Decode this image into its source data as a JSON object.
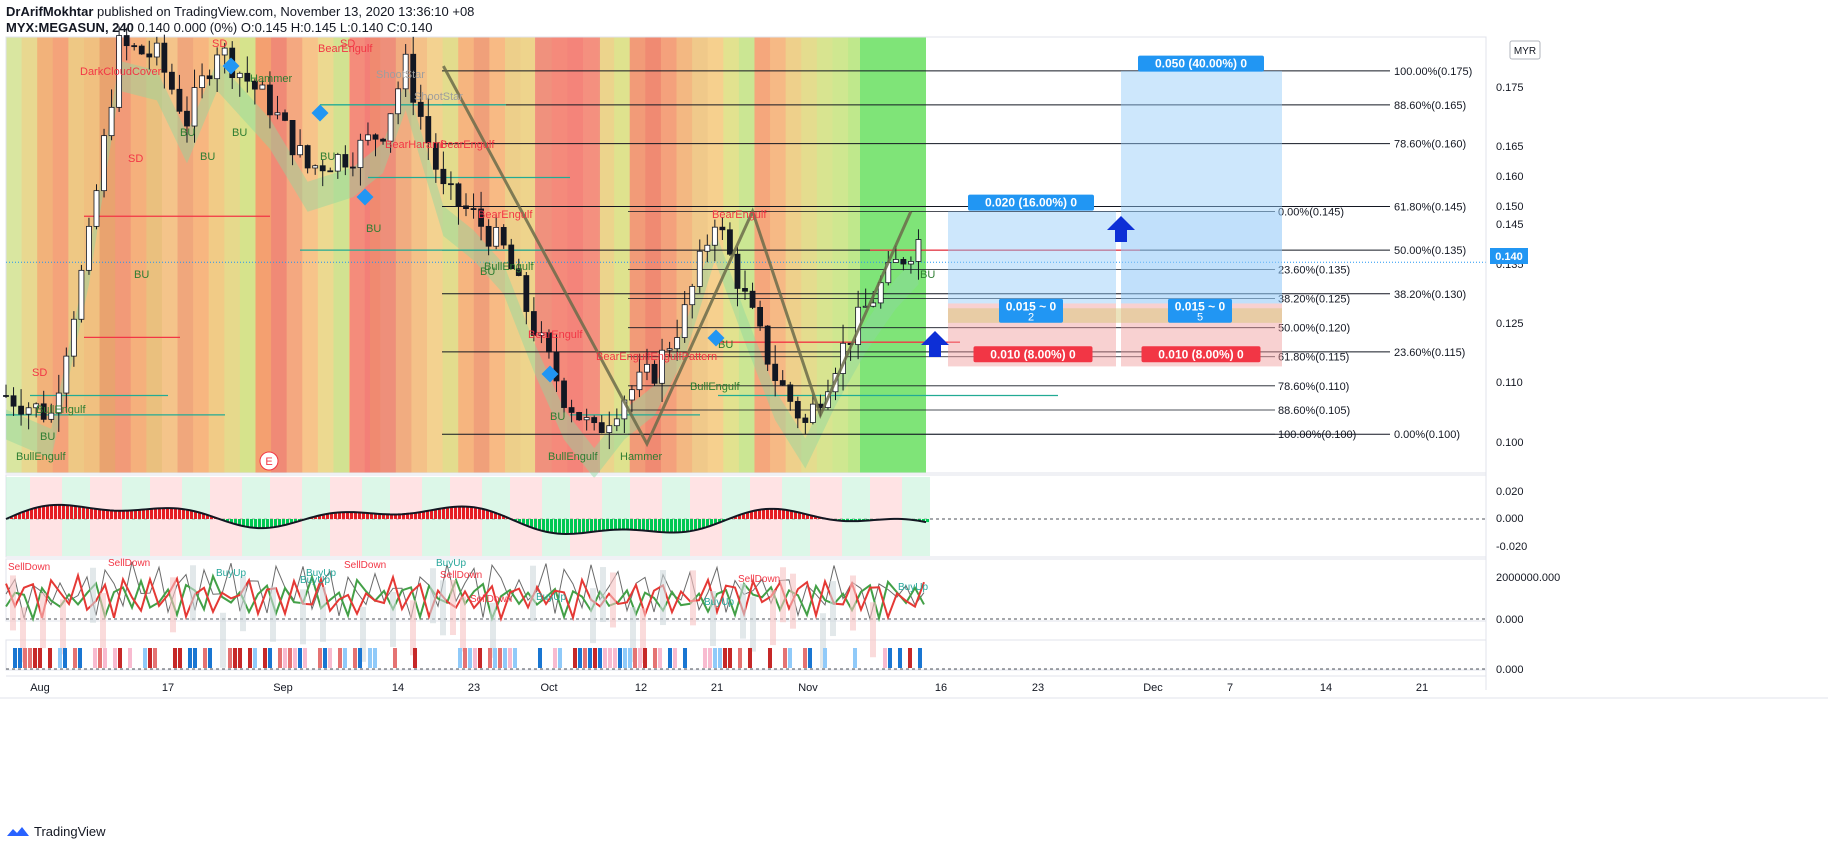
{
  "header": {
    "publisher": "DrArifMokhtar",
    "published_text": "published on TradingView.com, November 13, 2020 13:36:10 +08",
    "symbol": "MYX:MEGASUN, 240",
    "quote": "0.140 0.000 (0%)",
    "o": "O:0.145",
    "h": "H:0.145",
    "l": "L:0.140",
    "c": "C:0.140"
  },
  "footer": {
    "brand": "TradingView"
  },
  "chart_data": {
    "type": "candlestick",
    "currency": "MYR",
    "last_price": "0.140",
    "ylim": [
      0.092,
      0.182
    ],
    "y_ticks": [
      "0.175",
      "0.165",
      "0.160",
      "0.150",
      "0.145",
      "0.135",
      "0.125",
      "0.110",
      "0.100"
    ],
    "x_ticks": [
      "Aug",
      "17",
      "Sep",
      "14",
      "23",
      "Oct",
      "12",
      "21",
      "Nov",
      "16",
      "23",
      "Dec",
      "7",
      "14",
      "21"
    ],
    "price_path": [
      {
        "t": 0,
        "p": 0.108
      },
      {
        "t": 6,
        "p": 0.104
      },
      {
        "t": 11,
        "p": 0.14
      },
      {
        "t": 15,
        "p": 0.18
      },
      {
        "t": 20,
        "p": 0.178
      },
      {
        "t": 24,
        "p": 0.165
      },
      {
        "t": 28,
        "p": 0.18
      },
      {
        "t": 35,
        "p": 0.168
      },
      {
        "t": 40,
        "p": 0.155
      },
      {
        "t": 46,
        "p": 0.158
      },
      {
        "t": 50,
        "p": 0.163
      },
      {
        "t": 53,
        "p": 0.176
      },
      {
        "t": 58,
        "p": 0.15
      },
      {
        "t": 62,
        "p": 0.145
      },
      {
        "t": 66,
        "p": 0.138
      },
      {
        "t": 70,
        "p": 0.122
      },
      {
        "t": 74,
        "p": 0.108
      },
      {
        "t": 78,
        "p": 0.1
      },
      {
        "t": 82,
        "p": 0.108
      },
      {
        "t": 86,
        "p": 0.113
      },
      {
        "t": 90,
        "p": 0.125
      },
      {
        "t": 94,
        "p": 0.145
      },
      {
        "t": 98,
        "p": 0.128
      },
      {
        "t": 102,
        "p": 0.112
      },
      {
        "t": 106,
        "p": 0.102
      },
      {
        "t": 110,
        "p": 0.115
      },
      {
        "t": 114,
        "p": 0.126
      },
      {
        "t": 118,
        "p": 0.135
      },
      {
        "t": 121,
        "p": 0.14
      }
    ],
    "pattern_points": [
      {
        "t": 58,
        "p": 0.176
      },
      {
        "t": 85,
        "p": 0.098
      },
      {
        "t": 99,
        "p": 0.146
      },
      {
        "t": 108,
        "p": 0.104
      },
      {
        "t": 120,
        "p": 0.146
      }
    ],
    "fib_right": [
      {
        "label": "100.00%(0.175)",
        "p": 0.175
      },
      {
        "label": "88.60%(0.165)",
        "p": 0.168
      },
      {
        "label": "78.60%(0.160)",
        "p": 0.16
      },
      {
        "label": "61.80%(0.145)",
        "p": 0.147
      },
      {
        "label": "50.00%(0.135)",
        "p": 0.138
      },
      {
        "label": "38.20%(0.130)",
        "p": 0.129
      },
      {
        "label": "23.60%(0.115)",
        "p": 0.117
      },
      {
        "label": "0.00%(0.100)",
        "p": 0.1
      }
    ],
    "fib_mid": [
      {
        "label": "0.00%(0.145)",
        "p": 0.146
      },
      {
        "label": "23.60%(0.135)",
        "p": 0.134
      },
      {
        "label": "38.20%(0.125)",
        "p": 0.128
      },
      {
        "label": "50.00%(0.120)",
        "p": 0.122
      },
      {
        "label": "61.80%(0.115)",
        "p": 0.116
      },
      {
        "label": "78.60%(0.110)",
        "p": 0.11
      },
      {
        "label": "88.60%(0.105)",
        "p": 0.105
      },
      {
        "label": "100.00%(0.100)",
        "p": 0.1
      }
    ],
    "boxes": [
      {
        "label": "0.050 (40.00%) 0",
        "color": "#2196f3"
      },
      {
        "label": "0.020 (16.00%) 0",
        "color": "#2196f3"
      },
      {
        "label": "0.015 ~ 0",
        "sub": "2",
        "color": "#2196f3"
      },
      {
        "label": "0.015 ~ 0",
        "sub": "5",
        "color": "#2196f3"
      },
      {
        "label": "0.010 (8.00%) 0",
        "color": "#f23645"
      },
      {
        "label": "0.010 (8.00%) 0",
        "color": "#f23645"
      }
    ],
    "pattern_labels": [
      "DarkCloudCover",
      "SD",
      "SD",
      "SD",
      "SD",
      "BearEngulf",
      "ShootStar",
      "ShootStar",
      "Hammer",
      "BearHarami",
      "BearEngulf",
      "BearEngulf",
      "BearEngulf",
      "BearEngulf",
      "BearEngulfEngulfPattern",
      "BU",
      "BU",
      "BU",
      "BU",
      "BU",
      "BU",
      "BU",
      "BU",
      "BU",
      "BU",
      "BU",
      "BullEngulf",
      "BullEngulf",
      "BullEngulf",
      "BullEngulf",
      "BullEngulf",
      "Hammer",
      "E"
    ],
    "osc1_ticks": [
      "0.020",
      "0.000",
      "-0.020"
    ],
    "osc2_ticks": [
      "2000000.000",
      "0.000"
    ],
    "osc3_ticks": [
      "0.000"
    ],
    "osc2_labels": [
      "SellDown",
      "SellDown",
      "BuyUp",
      "BuyUp",
      "SellDown",
      "BuyUp",
      "SellDown",
      "SellDown",
      "BuyUp",
      "SellDown",
      "BuyUp",
      "BuyUp",
      "BuyUp"
    ]
  }
}
